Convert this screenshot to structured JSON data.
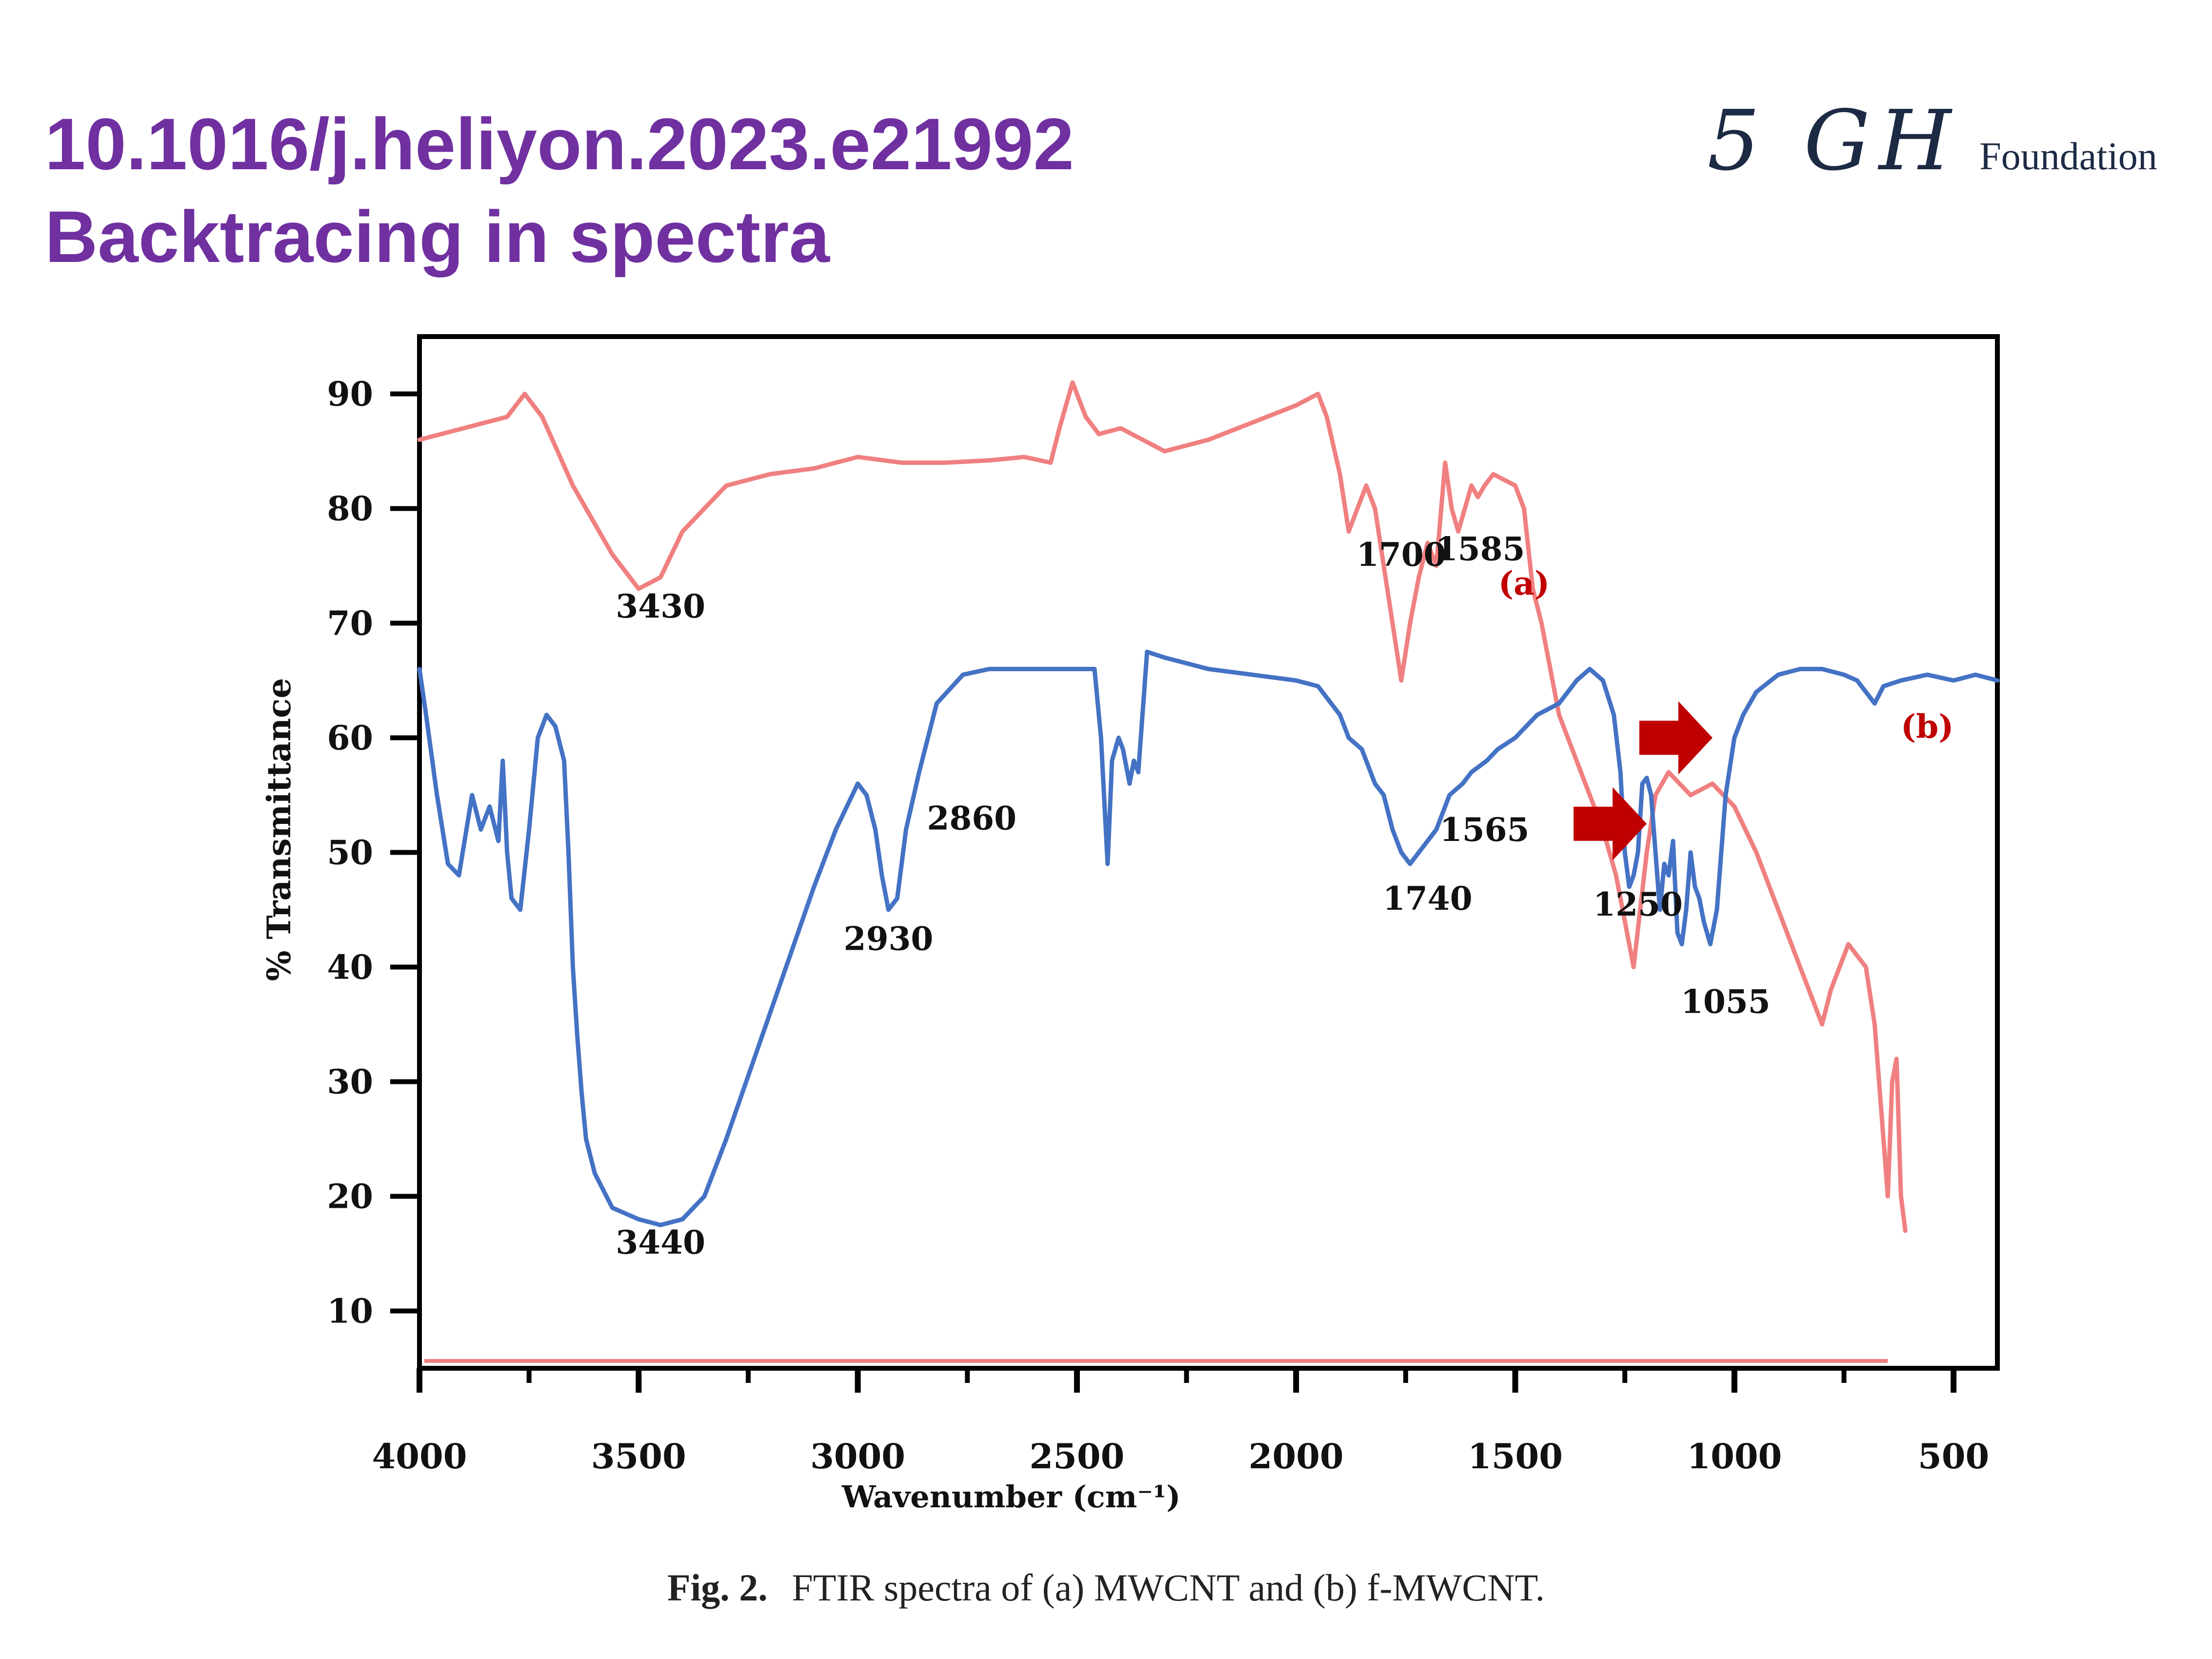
{
  "header": {
    "doi": "10.1016/j.heliyon.2023.e21992",
    "subtitle": "Backtracing in spectra",
    "title_color": "#7030a0",
    "brand_mark": "5 GH",
    "brand_text": "Foundation"
  },
  "caption": {
    "label": "Fig. 2.",
    "text": "FTIR spectra of (a) MWCNT and (b) f-MWCNT."
  },
  "chart_data": {
    "type": "line",
    "title": "",
    "xlabel": "Wavenumber (cm⁻¹)",
    "ylabel": "% Transmittance",
    "xlim": [
      4000,
      400
    ],
    "ylim": [
      5,
      95
    ],
    "xticks": [
      4000,
      3500,
      3000,
      2500,
      2000,
      1500,
      1000,
      500
    ],
    "yticks": [
      10,
      20,
      30,
      40,
      50,
      60,
      70,
      80,
      90
    ],
    "grid": false,
    "series": [
      {
        "name": "(a)",
        "color": "#f08080",
        "x": [
          4000,
          3900,
          3800,
          3760,
          3720,
          3650,
          3560,
          3500,
          3450,
          3400,
          3300,
          3200,
          3100,
          3050,
          3000,
          2900,
          2800,
          2700,
          2620,
          2560,
          2540,
          2510,
          2480,
          2450,
          2400,
          2300,
          2200,
          2100,
          2000,
          1950,
          1930,
          1900,
          1880,
          1860,
          1840,
          1820,
          1800,
          1780,
          1760,
          1740,
          1720,
          1700,
          1680,
          1660,
          1645,
          1630,
          1615,
          1600,
          1585,
          1570,
          1550,
          1500,
          1480,
          1460,
          1440,
          1400,
          1350,
          1300,
          1270,
          1250,
          1230,
          1200,
          1180,
          1150,
          1100,
          1050,
          1000,
          950,
          900,
          850,
          800,
          780,
          760,
          740,
          720,
          700,
          680,
          660,
          650,
          640,
          630,
          620,
          610
        ],
        "y": [
          86,
          87,
          88,
          90,
          88,
          82,
          76,
          73,
          74,
          78,
          82,
          83,
          83.5,
          84,
          84.5,
          84,
          84,
          84.2,
          84.5,
          84,
          87,
          91,
          88,
          86.5,
          87,
          85,
          86,
          87.5,
          89,
          90,
          88,
          83,
          78,
          80,
          82,
          80,
          75,
          70,
          65,
          70,
          74,
          77,
          75,
          84,
          80,
          78,
          80,
          82,
          81,
          82,
          83,
          82,
          80,
          73,
          70,
          62,
          57,
          52,
          48,
          44,
          40,
          50,
          55,
          57,
          55,
          56,
          54,
          50,
          45,
          40,
          35,
          38,
          40,
          42,
          41,
          40,
          35,
          25,
          20,
          30,
          32,
          20,
          17
        ]
      },
      {
        "name": "(b)",
        "color": "#4472c4",
        "x": [
          4000,
          3985,
          3960,
          3935,
          3910,
          3880,
          3860,
          3840,
          3820,
          3810,
          3800,
          3790,
          3770,
          3750,
          3730,
          3710,
          3690,
          3670,
          3660,
          3650,
          3640,
          3630,
          3620,
          3600,
          3560,
          3500,
          3450,
          3400,
          3350,
          3300,
          3200,
          3100,
          3050,
          3000,
          2980,
          2960,
          2945,
          2930,
          2910,
          2890,
          2860,
          2820,
          2760,
          2700,
          2600,
          2500,
          2460,
          2445,
          2430,
          2420,
          2405,
          2395,
          2380,
          2370,
          2360,
          2340,
          2300,
          2200,
          2100,
          2000,
          1950,
          1900,
          1880,
          1850,
          1820,
          1800,
          1780,
          1760,
          1740,
          1720,
          1700,
          1680,
          1650,
          1620,
          1600,
          1565,
          1540,
          1500,
          1450,
          1400,
          1360,
          1330,
          1300,
          1275,
          1260,
          1250,
          1240,
          1230,
          1220,
          1210,
          1200,
          1190,
          1180,
          1170,
          1160,
          1150,
          1140,
          1130,
          1120,
          1110,
          1100,
          1090,
          1080,
          1070,
          1055,
          1040,
          1020,
          1000,
          980,
          950,
          900,
          850,
          800,
          750,
          720,
          700,
          680,
          660,
          620,
          560,
          500,
          450,
          400
        ],
        "y": [
          66,
          62,
          55,
          49,
          48,
          55,
          52,
          54,
          51,
          58,
          50,
          46,
          45,
          52,
          60,
          62,
          61,
          58,
          50,
          40,
          34,
          29,
          25,
          22,
          19,
          18,
          17.5,
          18,
          20,
          25,
          36,
          47,
          52,
          56,
          55,
          52,
          48,
          45,
          46,
          52,
          57,
          63,
          65.5,
          66,
          66,
          66,
          66,
          60,
          49,
          58,
          60,
          59,
          56,
          58,
          57,
          67.5,
          67,
          66,
          65.5,
          65,
          64.5,
          62,
          60,
          59,
          56,
          55,
          52,
          50,
          49,
          50,
          51,
          52,
          55,
          56,
          57,
          58,
          59,
          60,
          62,
          63,
          65,
          66,
          65,
          62,
          57,
          50,
          47,
          48,
          50,
          56,
          56.5,
          55,
          50,
          45,
          49,
          48,
          51,
          43,
          42,
          45,
          50,
          47,
          46,
          44,
          42,
          45,
          55,
          60,
          62,
          64,
          65.5,
          66,
          66,
          65.5,
          65,
          64,
          63,
          64.5,
          65,
          65.5,
          65,
          65.5,
          65
        ]
      }
    ],
    "annotations": [
      {
        "text": "3430",
        "x": 3450,
        "y": 70.5,
        "color": "#111111"
      },
      {
        "text": "1700",
        "x": 1760,
        "y": 75,
        "color": "#111111"
      },
      {
        "text": "1585",
        "x": 1580,
        "y": 75.5,
        "color": "#111111"
      },
      {
        "text": "(a)",
        "x": 1480,
        "y": 72.5,
        "color": "#c00000"
      },
      {
        "text": "3440",
        "x": 3450,
        "y": 15,
        "color": "#111111"
      },
      {
        "text": "2930",
        "x": 2930,
        "y": 41.5,
        "color": "#111111"
      },
      {
        "text": "2860",
        "x": 2740,
        "y": 52,
        "color": "#111111"
      },
      {
        "text": "1740",
        "x": 1700,
        "y": 45,
        "color": "#111111"
      },
      {
        "text": "1565",
        "x": 1570,
        "y": 51,
        "color": "#111111"
      },
      {
        "text": "1250",
        "x": 1220,
        "y": 44.5,
        "color": "#111111"
      },
      {
        "text": "1055",
        "x": 1020,
        "y": 36,
        "color": "#111111"
      },
      {
        "text": "(b)",
        "x": 560,
        "y": 60,
        "color": "#c00000"
      }
    ],
    "arrows": [
      {
        "x": 1200,
        "y": 52.5,
        "color": "#c00000"
      },
      {
        "x": 1050,
        "y": 60,
        "color": "#c00000"
      }
    ]
  }
}
